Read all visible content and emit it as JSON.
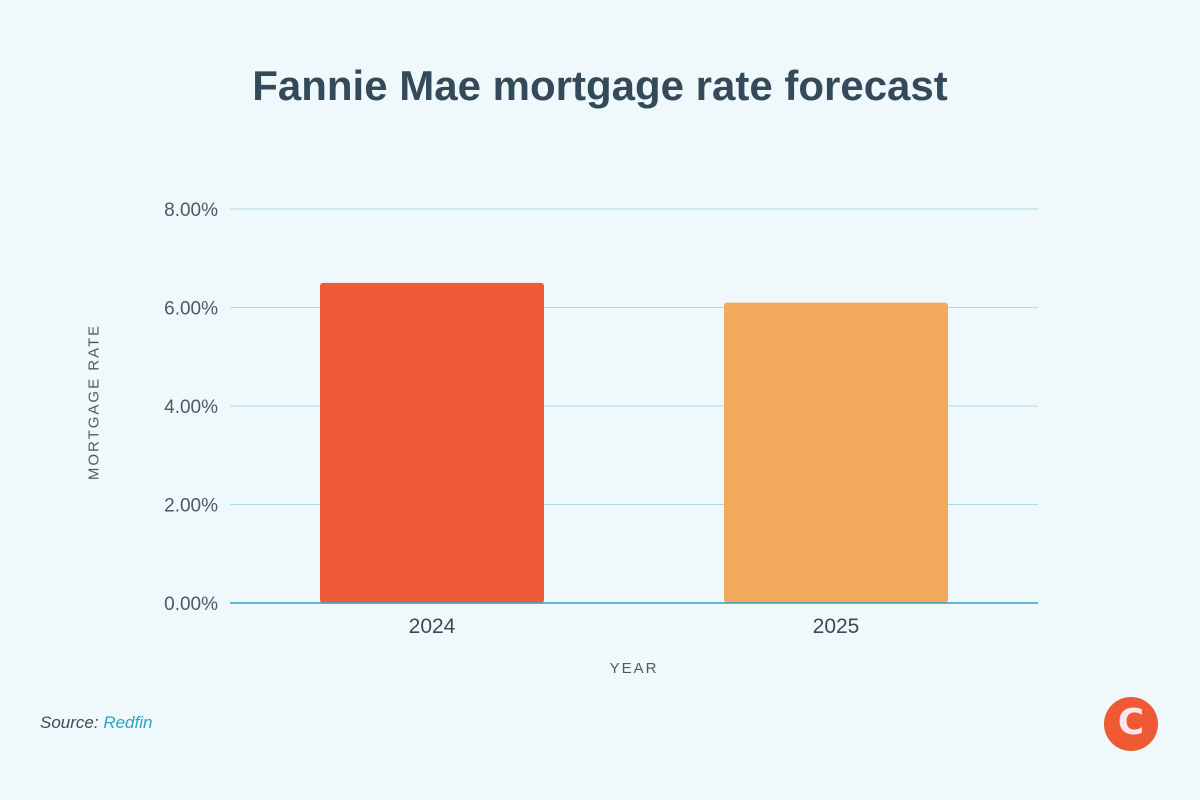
{
  "chart_data": {
    "type": "bar",
    "title": "Fannie Mae mortgage rate forecast",
    "categories": [
      "2024",
      "2025"
    ],
    "values": [
      6.5,
      6.1
    ],
    "colors": [
      "#ef5a38",
      "#f2ab5d"
    ],
    "xlabel": "YEAR",
    "ylabel": "MORTGAGE RATE",
    "ylim": [
      0,
      8
    ],
    "yticks": [
      0,
      2,
      4,
      6,
      8
    ],
    "ytick_labels": [
      "0.00%",
      "2.00%",
      "4.00%",
      "6.00%",
      "8.00%"
    ],
    "grid": true,
    "legend": "none"
  },
  "source": {
    "prefix": "Source:",
    "name": "Redfin"
  },
  "logo": {
    "letter": "C",
    "icon": "logo-c-icon"
  },
  "colors": {
    "background": "#eff8fa",
    "title": "#344a5a",
    "gridline": "#a9dde8",
    "axis": "#2aa3c6",
    "link": "#2aa3c6",
    "logo_bg": "#ef5a34"
  }
}
